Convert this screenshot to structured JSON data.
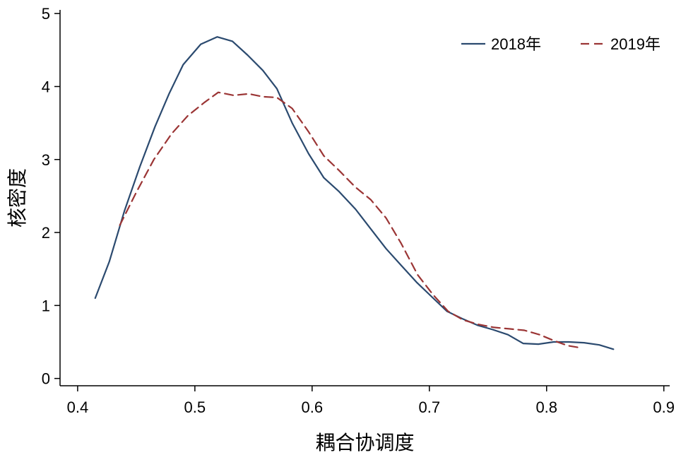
{
  "chart_data": {
    "type": "line",
    "title": "",
    "xlabel": "耦合协调度",
    "ylabel": "核密度",
    "xlim": [
      0.385,
      0.905
    ],
    "ylim": [
      -0.1,
      5.05
    ],
    "xticks": [
      0.4,
      0.5,
      0.6,
      0.7,
      0.8,
      0.9
    ],
    "xtick_labels": [
      "0.4",
      "0.5",
      "0.6",
      "0.7",
      "0.8",
      "0.9"
    ],
    "yticks": [
      0,
      1,
      2,
      3,
      4,
      5
    ],
    "ytick_labels": [
      "0",
      "1",
      "2",
      "3",
      "4",
      "5"
    ],
    "grid": false,
    "legend_position": "top-right",
    "series": [
      {
        "name": "2018年",
        "color": "#2b4a6f",
        "dash": "solid",
        "points": [
          [
            0.415,
            1.1
          ],
          [
            0.427,
            1.6
          ],
          [
            0.44,
            2.3
          ],
          [
            0.453,
            2.9
          ],
          [
            0.466,
            3.45
          ],
          [
            0.478,
            3.9
          ],
          [
            0.49,
            4.3
          ],
          [
            0.505,
            4.58
          ],
          [
            0.519,
            4.68
          ],
          [
            0.532,
            4.62
          ],
          [
            0.545,
            4.43
          ],
          [
            0.558,
            4.22
          ],
          [
            0.57,
            3.97
          ],
          [
            0.583,
            3.5
          ],
          [
            0.597,
            3.08
          ],
          [
            0.61,
            2.75
          ],
          [
            0.623,
            2.56
          ],
          [
            0.637,
            2.32
          ],
          [
            0.65,
            2.05
          ],
          [
            0.663,
            1.78
          ],
          [
            0.676,
            1.55
          ],
          [
            0.689,
            1.32
          ],
          [
            0.702,
            1.12
          ],
          [
            0.715,
            0.92
          ],
          [
            0.728,
            0.82
          ],
          [
            0.741,
            0.73
          ],
          [
            0.754,
            0.67
          ],
          [
            0.767,
            0.6
          ],
          [
            0.78,
            0.48
          ],
          [
            0.793,
            0.47
          ],
          [
            0.806,
            0.5
          ],
          [
            0.819,
            0.5
          ],
          [
            0.832,
            0.49
          ],
          [
            0.845,
            0.46
          ],
          [
            0.857,
            0.4
          ]
        ]
      },
      {
        "name": "2019年",
        "color": "#9b3535",
        "dash": "dashed",
        "points": [
          [
            0.436,
            2.1
          ],
          [
            0.45,
            2.55
          ],
          [
            0.465,
            3.0
          ],
          [
            0.48,
            3.35
          ],
          [
            0.494,
            3.6
          ],
          [
            0.508,
            3.78
          ],
          [
            0.52,
            3.92
          ],
          [
            0.533,
            3.88
          ],
          [
            0.546,
            3.9
          ],
          [
            0.558,
            3.86
          ],
          [
            0.57,
            3.85
          ],
          [
            0.583,
            3.7
          ],
          [
            0.597,
            3.38
          ],
          [
            0.61,
            3.05
          ],
          [
            0.623,
            2.85
          ],
          [
            0.637,
            2.62
          ],
          [
            0.65,
            2.45
          ],
          [
            0.663,
            2.2
          ],
          [
            0.676,
            1.85
          ],
          [
            0.69,
            1.42
          ],
          [
            0.703,
            1.15
          ],
          [
            0.716,
            0.92
          ],
          [
            0.729,
            0.8
          ],
          [
            0.742,
            0.74
          ],
          [
            0.755,
            0.7
          ],
          [
            0.768,
            0.68
          ],
          [
            0.781,
            0.66
          ],
          [
            0.794,
            0.6
          ],
          [
            0.806,
            0.52
          ],
          [
            0.818,
            0.45
          ],
          [
            0.829,
            0.42
          ]
        ]
      }
    ]
  }
}
